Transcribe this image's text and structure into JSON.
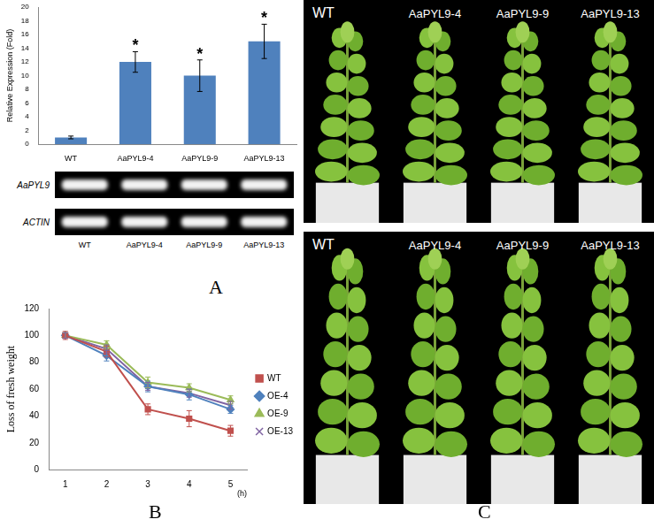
{
  "chart_data": [
    {
      "panel": "A",
      "type": "bar",
      "y_label": "Relative Expression (Fold)",
      "categories": [
        "WT",
        "AaPYL9-4",
        "AaPYL9-9",
        "AaPYL9-13"
      ],
      "values": [
        1,
        12,
        10,
        15
      ],
      "errors": [
        0.2,
        1.5,
        2.3,
        2.5
      ],
      "significance": [
        null,
        "*",
        "*",
        "*"
      ],
      "color": "#4f81bd",
      "ylim": [
        0,
        20
      ],
      "yticks": [
        0,
        2,
        4,
        6,
        8,
        10,
        12,
        14,
        16,
        18,
        20
      ],
      "grid": false
    },
    {
      "panel": "B",
      "type": "line",
      "y_label": "Loss of fresh weight",
      "x_label": "(h)",
      "x": [
        1,
        2,
        3,
        4,
        5
      ],
      "xlim": [
        0.6,
        5.4
      ],
      "xticks": [
        1,
        2,
        3,
        4,
        5
      ],
      "ylim": [
        0,
        120
      ],
      "yticks": [
        0,
        20,
        40,
        60,
        80,
        100,
        120
      ],
      "grid": false,
      "legend": "right",
      "series": [
        {
          "name": "WT",
          "color": "#c0504d",
          "marker": "square",
          "values": [
            100,
            88,
            45,
            38,
            29
          ],
          "errors": [
            3,
            4,
            4,
            6,
            4
          ]
        },
        {
          "name": "OE-4",
          "color": "#4f81bd",
          "marker": "diamond",
          "values": [
            100,
            85,
            62,
            56,
            45
          ],
          "errors": [
            2,
            4,
            4,
            4,
            3
          ]
        },
        {
          "name": "OE-9",
          "color": "#9bbb59",
          "marker": "triangle",
          "values": [
            100,
            93,
            65,
            61,
            52
          ],
          "errors": [
            2,
            3,
            4,
            3,
            3
          ]
        },
        {
          "name": "OE-13",
          "color": "#8064a2",
          "marker": "x",
          "values": [
            100,
            90,
            62,
            57,
            48
          ],
          "errors": [
            2,
            3,
            3,
            3,
            3
          ]
        }
      ]
    }
  ],
  "gel": {
    "rows": [
      "AaPYL9",
      "ACTIN"
    ],
    "lanes": [
      "WT",
      "AaPYL9-4",
      "AaPYL9-9",
      "AaPYL9-13"
    ]
  },
  "photos": {
    "panel": "C",
    "rows": [
      [
        "WT",
        "AaPYL9-4",
        "AaPYL9-9",
        "AaPYL9-13"
      ],
      [
        "WT",
        "AaPYL9-4",
        "AaPYL9-9",
        "AaPYL9-13"
      ]
    ]
  }
}
